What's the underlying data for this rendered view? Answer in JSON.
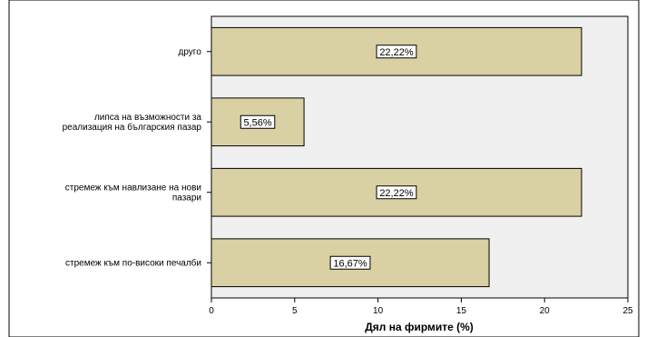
{
  "chart_data": {
    "type": "bar",
    "orientation": "horizontal",
    "categories": [
      [
        "другo"
      ],
      [
        "липса на възможности за",
        "реализация на българския пазар"
      ],
      [
        "стремеж към навлизане на нови",
        "пазари"
      ],
      [
        "стремеж към по-високи печалби"
      ]
    ],
    "values": [
      22.22,
      5.56,
      22.22,
      16.67
    ],
    "data_labels": [
      "22,22%",
      "5,56%",
      "22,22%",
      "16,67%"
    ],
    "xlabel": "Дял на фирмите (%)",
    "xlim": [
      0,
      25
    ],
    "xticks": [
      0,
      5,
      10,
      15,
      20,
      25
    ],
    "grid": false,
    "colors": {
      "bar_fill": "#D9D0A3",
      "bar_stroke": "#000000",
      "plot_background": "#F0F0F0",
      "page_background": "#FFFFFF"
    }
  }
}
